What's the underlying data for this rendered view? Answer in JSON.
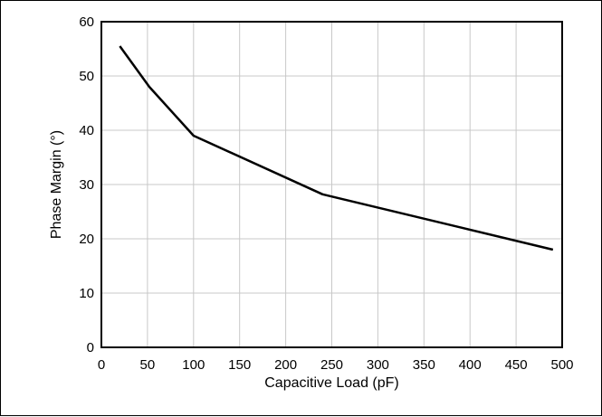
{
  "chart_data": {
    "type": "line",
    "title": "",
    "xlabel": "Capacitive Load (pF)",
    "ylabel": "Phase Margin (°)",
    "xlim": [
      0,
      500
    ],
    "ylim": [
      0,
      60
    ],
    "x_ticks": [
      0,
      50,
      100,
      150,
      200,
      250,
      300,
      350,
      400,
      450,
      500
    ],
    "y_ticks": [
      0,
      10,
      20,
      30,
      40,
      50,
      60
    ],
    "x_tick_labels": [
      "0",
      "50",
      "100",
      "150",
      "200",
      "250",
      "300",
      "350",
      "400",
      "450",
      "500"
    ],
    "y_tick_labels": [
      "0",
      "10",
      "20",
      "30",
      "40",
      "50",
      "60"
    ],
    "grid": true,
    "legend": "none",
    "series": [
      {
        "x": [
          20,
          52,
          100,
          240,
          490
        ],
        "y": [
          55.5,
          48,
          39,
          28.2,
          18
        ],
        "color": "#000000"
      }
    ]
  },
  "colors": {
    "grid": "#c8c8c8",
    "axes": "#000000",
    "background": "#ffffff"
  }
}
